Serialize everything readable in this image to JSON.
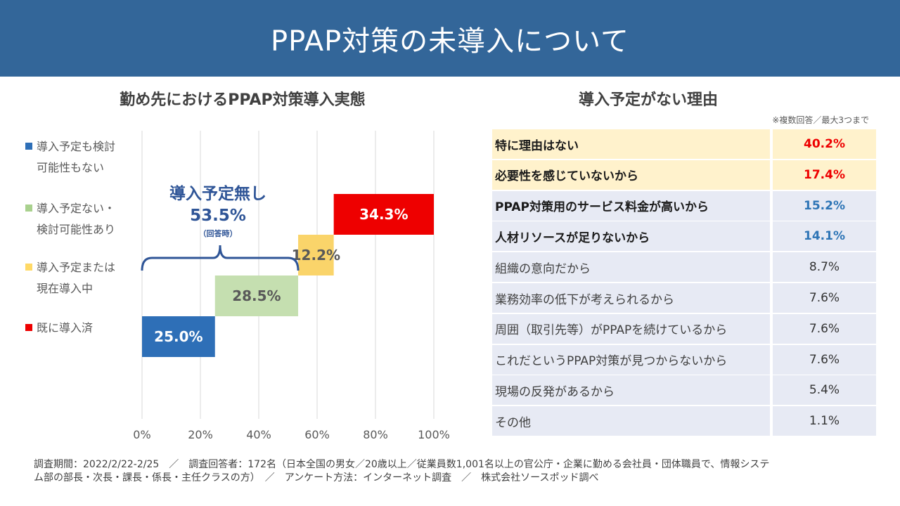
{
  "header": {
    "title": "PPAP対策の未導入について"
  },
  "left_chart": {
    "title": "勤め先におけるPPAP対策導入実態",
    "annotation": {
      "title": "導入予定無し",
      "value": "53.5%",
      "sub": "（回答時）"
    }
  },
  "chart_data": {
    "type": "bar",
    "subtype": "waterfall-horizontal",
    "title": "勤め先におけるPPAP対策導入実態",
    "categories": [
      "導入予定も検討可能性もない",
      "導入予定ない・検討可能性あり",
      "導入予定または現在導入中",
      "既に導入済"
    ],
    "values": [
      25.0,
      28.5,
      12.2,
      34.3
    ],
    "labels": [
      "25.0%",
      "28.5%",
      "12.2%",
      "34.3%"
    ],
    "colors": [
      "#2E6FB7",
      "#C5DFB0",
      "#FAD46A",
      "#EE0000"
    ],
    "label_colors": [
      "#ffffff",
      "#595959",
      "#595959",
      "#ffffff"
    ],
    "xticks": [
      "0%",
      "20%",
      "40%",
      "60%",
      "80%",
      "100%"
    ],
    "xlim": [
      0,
      100
    ],
    "grid": true,
    "legend_position": "left"
  },
  "legend": [
    {
      "line1": "導入予定も検討",
      "line2": "可能性もない",
      "color": "#2E6FB7"
    },
    {
      "line1": "導入予定ない・",
      "line2": "検討可能性あり",
      "color": "#A9D18E"
    },
    {
      "line1": "導入予定または",
      "line2": "現在導入中",
      "color": "#FFD966"
    },
    {
      "line1": "既に導入済",
      "line2": "",
      "color": "#EE0000"
    }
  ],
  "right_panel": {
    "title": "導入予定がない理由",
    "note": "※複数回答／最大3つまで",
    "reasons": [
      {
        "label": "特に理由はない",
        "value": "40.2%",
        "bold": true,
        "bg": "#FFF2CC",
        "value_color": "#EE0000"
      },
      {
        "label": "必要性を感じていないから",
        "value": "17.4%",
        "bold": true,
        "bg": "#FFF2CC",
        "value_color": "#EE0000"
      },
      {
        "label": "PPAP対策用のサービス料金が高いから",
        "value": "15.2%",
        "bold": true,
        "bg": "#E7EAF4",
        "value_color": "#2E75B6"
      },
      {
        "label": "人材リソースが足りないから",
        "value": "14.1%",
        "bold": true,
        "bg": "#E7EAF4",
        "value_color": "#2E75B6"
      },
      {
        "label": "組織の意向だから",
        "value": "8.7%",
        "bold": false,
        "bg": "#E7EAF4",
        "value_color": "#333333"
      },
      {
        "label": "業務効率の低下が考えられるから",
        "value": "7.6%",
        "bold": false,
        "bg": "#E7EAF4",
        "value_color": "#333333"
      },
      {
        "label": "周囲（取引先等）がPPAPを続けているから",
        "value": "7.6%",
        "bold": false,
        "bg": "#E7EAF4",
        "value_color": "#333333"
      },
      {
        "label": "これだというPPAP対策が見つからないから",
        "value": "7.6%",
        "bold": false,
        "bg": "#E7EAF4",
        "value_color": "#333333"
      },
      {
        "label": "現場の反発があるから",
        "value": "5.4%",
        "bold": false,
        "bg": "#E7EAF4",
        "value_color": "#333333"
      },
      {
        "label": "その他",
        "value": "1.1%",
        "bold": false,
        "bg": "#E7EAF4",
        "value_color": "#333333"
      }
    ]
  },
  "footer": {
    "line1": "調査期間：2022/2/22-2/25　／　調査回答者：172名（日本全国の男女／20歳以上／従業員数1,001名以上の官公庁・企業に勤める会社員・団体職員で、情報システ",
    "line2": "ム部の部長・次長・課長・係長・主任クラスの方）　／　アンケート方法：インターネット調査　／　株式会社ソースポッド調べ"
  }
}
